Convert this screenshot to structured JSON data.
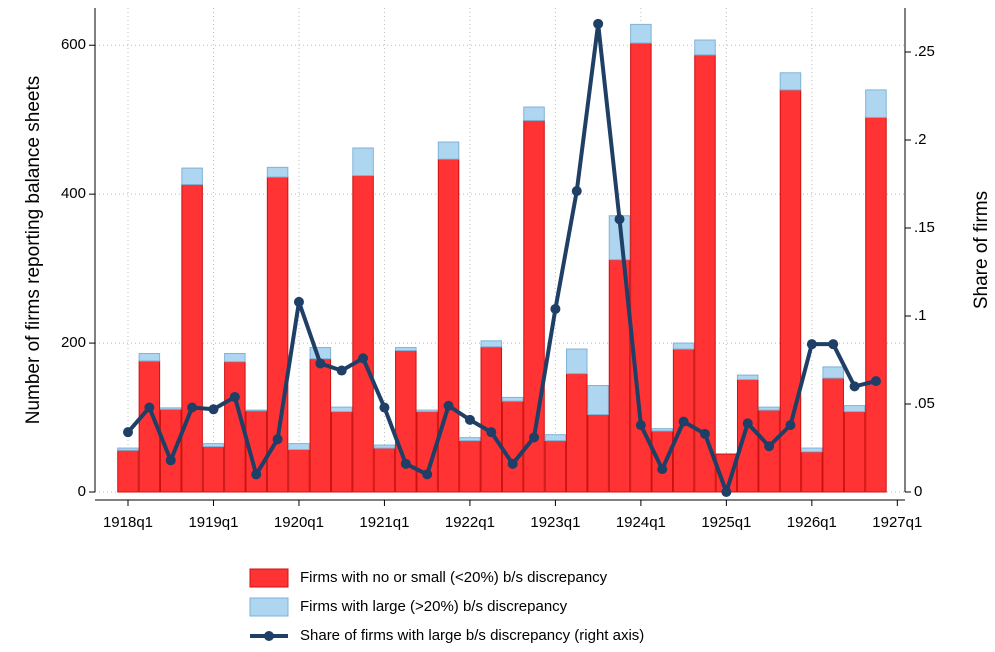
{
  "chart_data": {
    "type": "bar-line",
    "y_label": "Number of firms reporting balance sheets",
    "y2_label": "Share of firms",
    "categories": [
      "1918q1",
      null,
      null,
      null,
      "1919q1",
      null,
      null,
      null,
      "1920q1",
      null,
      null,
      null,
      "1921q1",
      null,
      null,
      null,
      "1922q1",
      null,
      null,
      null,
      "1923q1",
      null,
      null,
      null,
      "1924q1",
      null,
      null,
      null,
      "1925q1",
      null,
      null,
      null,
      "1926q1",
      null,
      null,
      null
    ],
    "x_end_label": "1927q1",
    "series": [
      {
        "name": "Firms with no or small (<20%) b/s discrepancy",
        "color": "#ff3333",
        "type": "bar",
        "values": [
          56,
          176,
          111,
          413,
          61,
          175,
          109,
          423,
          57,
          179,
          108,
          425,
          59,
          190,
          108,
          447,
          69,
          195,
          122,
          499,
          69,
          159,
          104,
          312,
          603,
          82,
          192,
          587,
          51,
          151,
          110,
          540,
          54,
          153,
          108,
          503
        ]
      },
      {
        "name": "Firms with large (>20%) b/s discrepancy",
        "color": "#aed6f1",
        "type": "bar",
        "values": [
          3,
          10,
          2,
          22,
          4,
          11,
          1,
          13,
          8,
          15,
          6,
          37,
          4,
          4,
          2,
          23,
          4,
          8,
          5,
          18,
          8,
          33,
          39,
          59,
          25,
          3,
          8,
          20,
          0,
          6,
          4,
          23,
          5,
          15,
          8,
          37
        ]
      },
      {
        "name": "Share of firms with large b/s discrepancy (right axis)",
        "color": "#1f3f66",
        "type": "line",
        "axis": "y2",
        "values": [
          0.034,
          0.048,
          0.018,
          0.048,
          0.047,
          0.054,
          0.01,
          0.03,
          0.108,
          0.073,
          0.069,
          0.076,
          0.048,
          0.016,
          0.01,
          0.049,
          0.041,
          0.034,
          0.016,
          0.031,
          0.104,
          0.171,
          0.266,
          0.155,
          0.038,
          0.013,
          0.04,
          0.033,
          0,
          0.039,
          0.026,
          0.038,
          0.084,
          0.084,
          0.06,
          0.063
        ]
      }
    ],
    "ylim": [
      0,
      650
    ],
    "yticks": [
      0,
      200,
      400,
      600
    ],
    "y2lim": [
      0,
      0.275
    ],
    "y2ticks": [
      0,
      {
        "value": 0.05,
        "label": ".05"
      },
      {
        "value": 0.1,
        "label": ".1"
      },
      {
        "value": 0.15,
        "label": ".15"
      },
      {
        "value": 0.2,
        "label": ".2"
      },
      {
        "value": 0.25,
        "label": ".25"
      }
    ],
    "grid": true
  }
}
